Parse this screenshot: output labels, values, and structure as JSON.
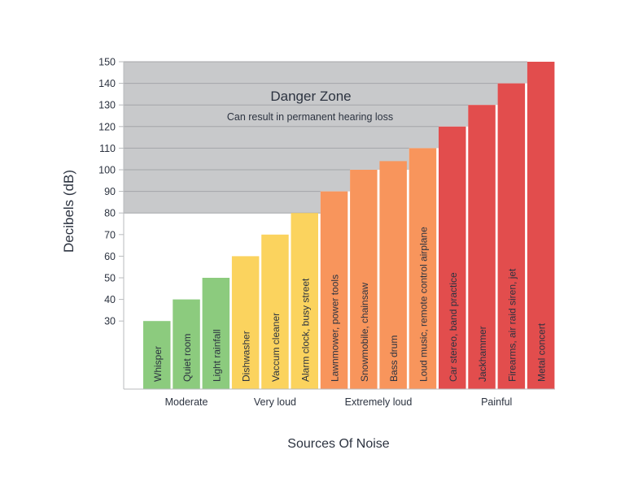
{
  "chart_data": {
    "type": "bar",
    "title": "",
    "xlabel": "Sources Of Noise",
    "ylabel": "Decibels (dB)",
    "ylim": [
      0,
      150
    ],
    "yticks": [
      30,
      40,
      50,
      60,
      70,
      80,
      90,
      100,
      110,
      120,
      130,
      140,
      150
    ],
    "categories": [
      "Whisper",
      "Quiet room",
      "Light rainfall",
      "Dishwasher",
      "Vaccum cleaner",
      "Alarm clock, busy street",
      "Lawnmower, power tools",
      "Snowmobile, chainsaw",
      "Bass drum",
      "Loud music, remote control airplane",
      "Car stereo, band practice",
      "Jackhammer",
      "Firearms, air raid siren, jet",
      "Metal concert"
    ],
    "values": [
      30,
      40,
      50,
      60,
      70,
      80,
      90,
      100,
      104,
      110,
      120,
      130,
      140,
      150
    ],
    "groups": [
      {
        "name": "Moderate",
        "start": 0,
        "end": 2,
        "color": "#8ccb7e"
      },
      {
        "name": "Very loud",
        "start": 3,
        "end": 5,
        "color": "#fbd35e"
      },
      {
        "name": "Extremely loud",
        "start": 6,
        "end": 9,
        "color": "#f8955c"
      },
      {
        "name": "Painful",
        "start": 10,
        "end": 13,
        "color": "#e24d4d"
      }
    ],
    "danger_zone": {
      "from": 80,
      "to": 150,
      "title": "Danger Zone",
      "subtitle": "Can result in permanent hearing loss",
      "color": "#c8c9cb"
    }
  }
}
